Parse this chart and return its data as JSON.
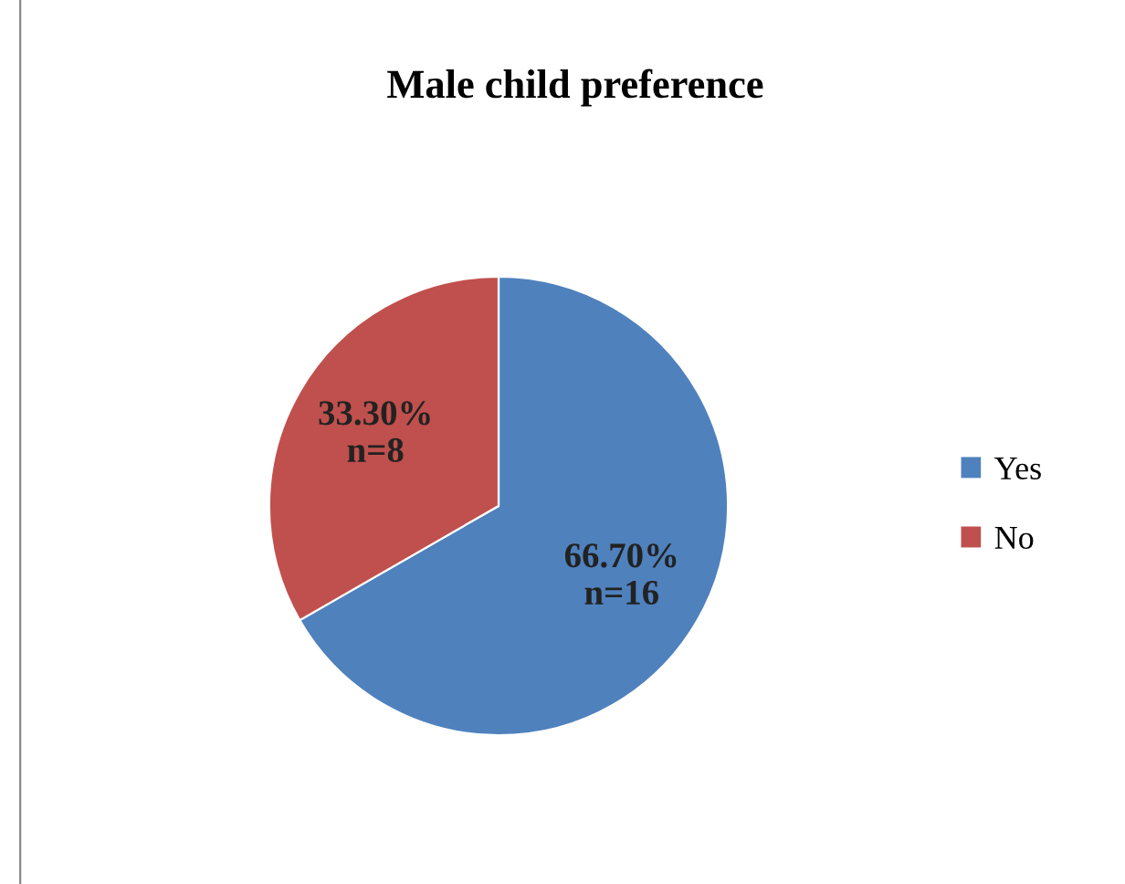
{
  "chart_data": {
    "type": "pie",
    "title": "Male child preference",
    "categories": [
      "Yes",
      "No"
    ],
    "values": [
      66.7,
      33.3
    ],
    "colors": [
      "#4f81bd",
      "#c0504d"
    ],
    "value_labels": [
      "66.70%\nn=16",
      "33.30%\nn=8"
    ],
    "legend": "right"
  }
}
